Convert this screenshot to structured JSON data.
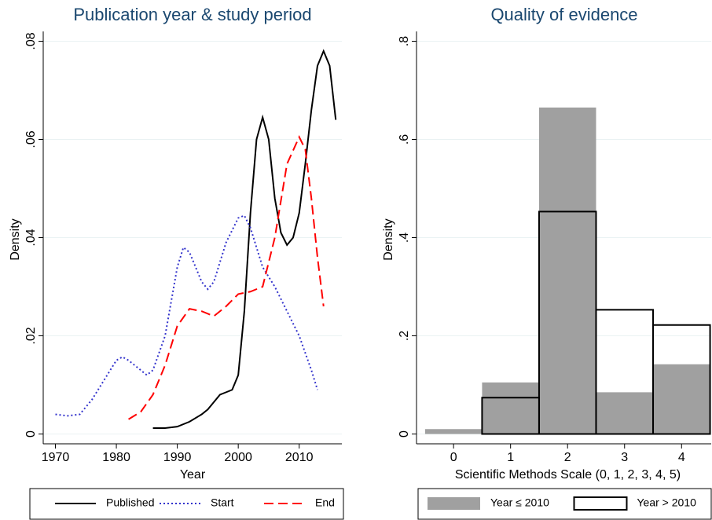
{
  "chart_data": [
    {
      "type": "line",
      "title": "Publication year & study period",
      "xlabel": "Year",
      "ylabel": "Density",
      "xlim": [
        1968,
        2017
      ],
      "ylim": [
        -0.002,
        0.082
      ],
      "xticks": [
        1970,
        1980,
        1990,
        2000,
        2010
      ],
      "yticks": [
        0,
        {
          "value": 0.02,
          "label": ".02"
        },
        {
          "value": 0.04,
          "label": ".04"
        },
        {
          "value": 0.06,
          "label": ".06"
        },
        {
          "value": 0.08,
          "label": ".08"
        }
      ],
      "grid": true,
      "legend": "bottom",
      "series": [
        {
          "name": "Published",
          "color": "#000000",
          "dash": "solid",
          "x": [
            1986,
            1988,
            1990,
            1992,
            1994,
            1995,
            1996,
            1997,
            1998,
            1999,
            2000,
            2001,
            2002,
            2003,
            2004,
            2005,
            2006,
            2007,
            2008,
            2009,
            2010,
            2011,
            2012,
            2013,
            2014,
            2015,
            2016
          ],
          "values": [
            0.0012,
            0.0012,
            0.0015,
            0.0025,
            0.004,
            0.005,
            0.0065,
            0.008,
            0.0085,
            0.009,
            0.012,
            0.025,
            0.045,
            0.06,
            0.0645,
            0.06,
            0.048,
            0.041,
            0.0385,
            0.04,
            0.045,
            0.055,
            0.066,
            0.075,
            0.078,
            0.075,
            0.064
          ]
        },
        {
          "name": "Start",
          "color": "#3333cc",
          "dash": "dotted",
          "x": [
            1970,
            1972,
            1974,
            1976,
            1978,
            1980,
            1981,
            1982,
            1984,
            1985,
            1986,
            1988,
            1990,
            1991,
            1992,
            1994,
            1995,
            1996,
            1998,
            2000,
            2001,
            2002,
            2004,
            2006,
            2008,
            2010,
            2012,
            2013
          ],
          "values": [
            0.004,
            0.0037,
            0.004,
            0.007,
            0.011,
            0.015,
            0.0157,
            0.015,
            0.013,
            0.012,
            0.013,
            0.02,
            0.034,
            0.038,
            0.037,
            0.031,
            0.0295,
            0.031,
            0.039,
            0.044,
            0.0445,
            0.042,
            0.034,
            0.03,
            0.025,
            0.02,
            0.013,
            0.009
          ]
        },
        {
          "name": "End",
          "color": "#ff0000",
          "dash": "dashed",
          "x": [
            1982,
            1984,
            1986,
            1988,
            1990,
            1992,
            1994,
            1996,
            1998,
            2000,
            2002,
            2004,
            2006,
            2008,
            2010,
            2011,
            2012,
            2013,
            2014
          ],
          "values": [
            0.003,
            0.0045,
            0.008,
            0.014,
            0.022,
            0.0255,
            0.025,
            0.024,
            0.026,
            0.0285,
            0.029,
            0.03,
            0.04,
            0.055,
            0.0605,
            0.058,
            0.048,
            0.036,
            0.026
          ]
        }
      ]
    },
    {
      "type": "histogram",
      "title": "Quality of evidence",
      "xlabel": "Scientific Methods Scale (0, 1, 2, 3, 4, 5)",
      "ylabel": "Density",
      "xlim": [
        -0.65,
        4.52
      ],
      "ylim": [
        -0.02,
        0.82
      ],
      "xticks": [
        0,
        1,
        2,
        3,
        4
      ],
      "yticks": [
        0,
        {
          "value": 0.2,
          "label": ".2"
        },
        {
          "value": 0.4,
          "label": ".4"
        },
        {
          "value": 0.6,
          "label": ".6"
        },
        {
          "value": 0.8,
          "label": ".8"
        }
      ],
      "grid": true,
      "legend": "bottom",
      "bins": [
        -0.5,
        0.5,
        1.5,
        2.5,
        3.5,
        4.5
      ],
      "series": [
        {
          "name": "Year ≤ 2010",
          "color": "#a0a0a0",
          "style": "filled",
          "values": [
            0.01,
            0.105,
            0.665,
            0.085,
            0.142
          ]
        },
        {
          "name": "Year > 2010",
          "color": "#000000",
          "style": "outline",
          "values": [
            0,
            0.074,
            0.453,
            0.253,
            0.222
          ]
        }
      ]
    }
  ]
}
